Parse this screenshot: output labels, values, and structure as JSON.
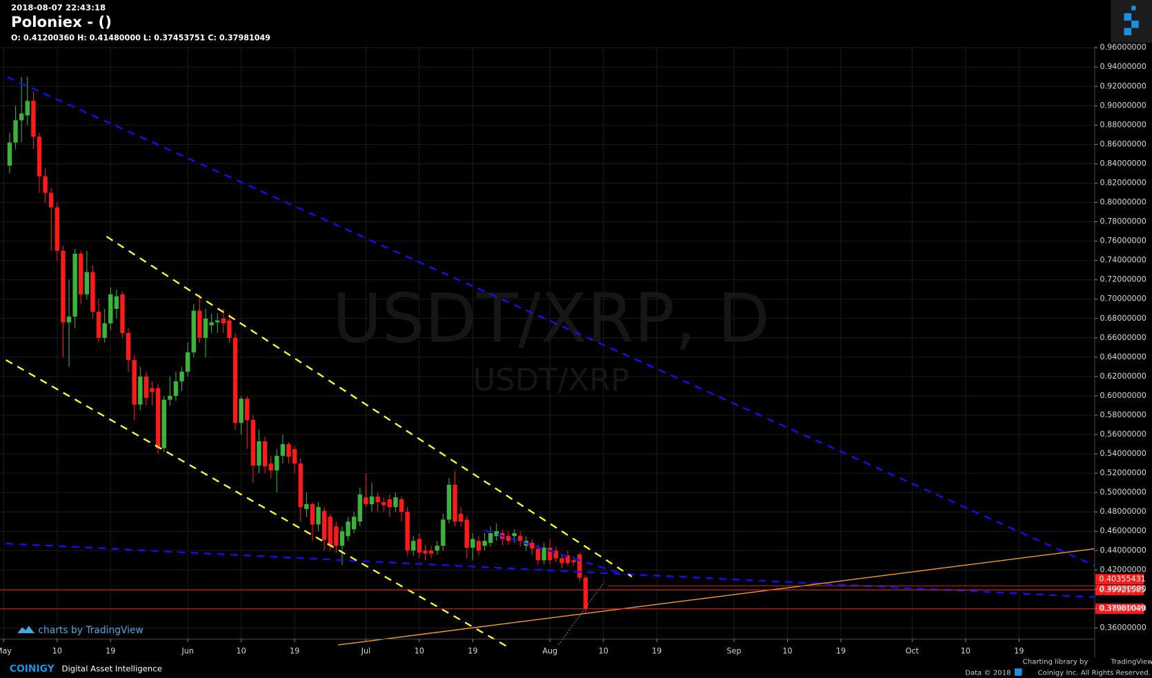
{
  "header": {
    "timestamp": "2018-08-07 22:43:18",
    "title": "Poloniex -  ()",
    "ohlc": "O: 0.41200360 H: 0.41480000 L: 0.37453751 C: 0.37981049"
  },
  "chart_data": {
    "type": "candlestick",
    "watermark": "USDT/XRP, D",
    "watermark_sub": "USDT/XRP",
    "x": [
      "2018-05-02",
      "2018-05-03",
      "2018-05-04",
      "2018-05-05",
      "2018-05-06",
      "2018-05-07",
      "2018-05-08",
      "2018-05-09",
      "2018-05-10",
      "2018-05-11",
      "2018-05-12",
      "2018-05-13",
      "2018-05-14",
      "2018-05-15",
      "2018-05-16",
      "2018-05-17",
      "2018-05-18",
      "2018-05-19",
      "2018-05-20",
      "2018-05-21",
      "2018-05-22",
      "2018-05-23",
      "2018-05-24",
      "2018-05-25",
      "2018-05-26",
      "2018-05-27",
      "2018-05-28",
      "2018-05-29",
      "2018-05-30",
      "2018-05-31",
      "2018-06-01",
      "2018-06-02",
      "2018-06-03",
      "2018-06-04",
      "2018-06-05",
      "2018-06-06",
      "2018-06-07",
      "2018-06-08",
      "2018-06-09",
      "2018-06-10",
      "2018-06-11",
      "2018-06-12",
      "2018-06-13",
      "2018-06-14",
      "2018-06-15",
      "2018-06-16",
      "2018-06-17",
      "2018-06-18",
      "2018-06-19",
      "2018-06-20",
      "2018-06-21",
      "2018-06-22",
      "2018-06-23",
      "2018-06-24",
      "2018-06-25",
      "2018-06-26",
      "2018-06-27",
      "2018-06-28",
      "2018-06-29",
      "2018-06-30",
      "2018-07-01",
      "2018-07-02",
      "2018-07-03",
      "2018-07-04",
      "2018-07-05",
      "2018-07-06",
      "2018-07-07",
      "2018-07-08",
      "2018-07-09",
      "2018-07-10",
      "2018-07-11",
      "2018-07-12",
      "2018-07-13",
      "2018-07-14",
      "2018-07-15",
      "2018-07-16",
      "2018-07-17",
      "2018-07-18",
      "2018-07-19",
      "2018-07-20",
      "2018-07-21",
      "2018-07-22",
      "2018-07-23",
      "2018-07-24",
      "2018-07-25",
      "2018-07-26",
      "2018-07-27",
      "2018-07-28",
      "2018-07-29",
      "2018-07-30",
      "2018-07-31",
      "2018-08-01",
      "2018-08-02",
      "2018-08-03",
      "2018-08-04",
      "2018-08-05",
      "2018-08-06",
      "2018-08-07"
    ],
    "open": [
      0.838,
      0.862,
      0.885,
      0.89,
      0.905,
      0.868,
      0.827,
      0.81,
      0.795,
      0.75,
      0.676,
      0.682,
      0.747,
      0.705,
      0.728,
      0.687,
      0.66,
      0.675,
      0.69,
      0.705,
      0.665,
      0.637,
      0.591,
      0.62,
      0.608,
      0.608,
      0.546,
      0.596,
      0.6,
      0.615,
      0.625,
      0.645,
      0.688,
      0.66,
      0.673,
      0.676,
      0.68,
      0.678,
      0.66,
      0.572,
      0.597,
      0.575,
      0.528,
      0.553,
      0.53,
      0.523,
      0.538,
      0.55,
      0.545,
      0.53,
      0.483,
      0.488,
      0.467,
      0.481,
      0.475,
      0.465,
      0.445,
      0.455,
      0.462,
      0.47,
      0.495,
      0.488,
      0.496,
      0.49,
      0.493,
      0.485,
      0.493,
      0.48,
      0.44,
      0.452,
      0.44,
      0.44,
      0.44,
      0.445,
      0.472,
      0.508,
      0.478,
      0.472,
      0.443,
      0.45,
      0.445,
      0.448,
      0.455,
      0.458,
      0.455,
      0.455,
      0.455,
      0.445,
      0.448,
      0.442,
      0.43,
      0.443,
      0.44,
      0.432,
      0.435,
      0.43,
      0.436,
      0.4120036
    ],
    "high": [
      0.872,
      0.9,
      0.93,
      0.93,
      0.915,
      0.872,
      0.835,
      0.815,
      0.8,
      0.755,
      0.72,
      0.752,
      0.75,
      0.75,
      0.735,
      0.7,
      0.69,
      0.712,
      0.71,
      0.708,
      0.67,
      0.642,
      0.63,
      0.625,
      0.615,
      0.612,
      0.6,
      0.62,
      0.625,
      0.63,
      0.655,
      0.695,
      0.705,
      0.69,
      0.685,
      0.685,
      0.69,
      0.685,
      0.665,
      0.6,
      0.6,
      0.58,
      0.565,
      0.558,
      0.538,
      0.545,
      0.56,
      0.552,
      0.548,
      0.535,
      0.5,
      0.49,
      0.49,
      0.485,
      0.478,
      0.47,
      0.465,
      0.475,
      0.48,
      0.505,
      0.52,
      0.51,
      0.5,
      0.495,
      0.498,
      0.5,
      0.496,
      0.485,
      0.455,
      0.458,
      0.446,
      0.445,
      0.45,
      0.478,
      0.515,
      0.522,
      0.485,
      0.476,
      0.458,
      0.455,
      0.458,
      0.465,
      0.468,
      0.462,
      0.46,
      0.462,
      0.46,
      0.455,
      0.452,
      0.446,
      0.448,
      0.452,
      0.444,
      0.436,
      0.44,
      0.434,
      0.438,
      0.4148
    ],
    "low": [
      0.83,
      0.855,
      0.862,
      0.88,
      0.855,
      0.81,
      0.8,
      0.75,
      0.74,
      0.64,
      0.63,
      0.67,
      0.695,
      0.7,
      0.68,
      0.655,
      0.655,
      0.668,
      0.68,
      0.66,
      0.625,
      0.575,
      0.585,
      0.59,
      0.59,
      0.54,
      0.542,
      0.59,
      0.595,
      0.605,
      0.62,
      0.64,
      0.655,
      0.64,
      0.665,
      0.665,
      0.665,
      0.655,
      0.565,
      0.56,
      0.545,
      0.51,
      0.52,
      0.52,
      0.515,
      0.5,
      0.53,
      0.53,
      0.52,
      0.47,
      0.475,
      0.45,
      0.46,
      0.44,
      0.44,
      0.438,
      0.425,
      0.45,
      0.458,
      0.465,
      0.485,
      0.48,
      0.48,
      0.48,
      0.475,
      0.48,
      0.47,
      0.435,
      0.435,
      0.432,
      0.43,
      0.432,
      0.436,
      0.44,
      0.468,
      0.465,
      0.465,
      0.432,
      0.43,
      0.435,
      0.44,
      0.444,
      0.45,
      0.445,
      0.446,
      0.448,
      0.444,
      0.44,
      0.436,
      0.425,
      0.426,
      0.426,
      0.428,
      0.422,
      0.424,
      0.424,
      0.408,
      0.37453751
    ],
    "close": [
      0.862,
      0.885,
      0.892,
      0.905,
      0.868,
      0.827,
      0.81,
      0.795,
      0.75,
      0.676,
      0.682,
      0.747,
      0.705,
      0.728,
      0.687,
      0.66,
      0.675,
      0.705,
      0.703,
      0.665,
      0.637,
      0.591,
      0.62,
      0.598,
      0.604,
      0.546,
      0.596,
      0.6,
      0.615,
      0.625,
      0.645,
      0.688,
      0.66,
      0.68,
      0.676,
      0.678,
      0.675,
      0.66,
      0.572,
      0.597,
      0.575,
      0.528,
      0.553,
      0.527,
      0.523,
      0.538,
      0.55,
      0.537,
      0.53,
      0.485,
      0.488,
      0.467,
      0.485,
      0.451,
      0.445,
      0.445,
      0.46,
      0.47,
      0.475,
      0.498,
      0.488,
      0.496,
      0.49,
      0.487,
      0.485,
      0.495,
      0.48,
      0.44,
      0.45,
      0.438,
      0.437,
      0.437,
      0.445,
      0.472,
      0.508,
      0.47,
      0.47,
      0.443,
      0.452,
      0.44,
      0.45,
      0.458,
      0.46,
      0.452,
      0.45,
      0.458,
      0.45,
      0.45,
      0.442,
      0.43,
      0.443,
      0.43,
      0.432,
      0.427,
      0.427,
      0.428,
      0.412,
      0.37981049
    ],
    "up_color": "#3cb43c",
    "down_color": "#ff1a1a",
    "xlim": [
      "2018-05-01",
      "2018-10-31"
    ],
    "xticks": [
      {
        "value": "2018-05-01",
        "label": "May"
      },
      {
        "value": "2018-05-10",
        "label": "10"
      },
      {
        "value": "2018-05-19",
        "label": "19"
      },
      {
        "value": "2018-06-01",
        "label": "Jun"
      },
      {
        "value": "2018-06-10",
        "label": "10"
      },
      {
        "value": "2018-06-19",
        "label": "19"
      },
      {
        "value": "2018-07-01",
        "label": "Jul"
      },
      {
        "value": "2018-07-10",
        "label": "10"
      },
      {
        "value": "2018-07-19",
        "label": "19"
      },
      {
        "value": "2018-08-01",
        "label": "Aug"
      },
      {
        "value": "2018-08-10",
        "label": "10"
      },
      {
        "value": "2018-08-19",
        "label": "19"
      },
      {
        "value": "2018-09-01",
        "label": "Sep"
      },
      {
        "value": "2018-09-10",
        "label": "10"
      },
      {
        "value": "2018-09-19",
        "label": "19"
      },
      {
        "value": "2018-10-01",
        "label": "Oct"
      },
      {
        "value": "2018-10-10",
        "label": "10"
      },
      {
        "value": "2018-10-19",
        "label": "19"
      }
    ],
    "ylim": [
      0.3485,
      0.9615
    ],
    "yticks": [
      {
        "value": 0.36,
        "label": "0.36000000"
      },
      {
        "value": 0.38,
        "label": "0.38000000"
      },
      {
        "value": 0.4,
        "label": "0.40000000"
      },
      {
        "value": 0.42,
        "label": "0.42000000"
      },
      {
        "value": 0.44,
        "label": "0.44000000"
      },
      {
        "value": 0.46,
        "label": "0.46000000"
      },
      {
        "value": 0.48,
        "label": "0.48000000"
      },
      {
        "value": 0.5,
        "label": "0.50000000"
      },
      {
        "value": 0.52,
        "label": "0.52000000"
      },
      {
        "value": 0.54,
        "label": "0.54000000"
      },
      {
        "value": 0.56,
        "label": "0.56000000"
      },
      {
        "value": 0.58,
        "label": "0.58000000"
      },
      {
        "value": 0.6,
        "label": "0.60000000"
      },
      {
        "value": 0.62,
        "label": "0.62000000"
      },
      {
        "value": 0.64,
        "label": "0.64000000"
      },
      {
        "value": 0.66,
        "label": "0.66000000"
      },
      {
        "value": 0.68,
        "label": "0.68000000"
      },
      {
        "value": 0.7,
        "label": "0.70000000"
      },
      {
        "value": 0.72,
        "label": "0.72000000"
      },
      {
        "value": 0.74,
        "label": "0.74000000"
      },
      {
        "value": 0.76,
        "label": "0.76000000"
      },
      {
        "value": 0.78,
        "label": "0.78000000"
      },
      {
        "value": 0.8,
        "label": "0.80000000"
      },
      {
        "value": 0.82,
        "label": "0.82000000"
      },
      {
        "value": 0.84,
        "label": "0.84000000"
      },
      {
        "value": 0.86,
        "label": "0.86000000"
      },
      {
        "value": 0.88,
        "label": "0.88000000"
      },
      {
        "value": 0.9,
        "label": "0.90000000"
      },
      {
        "value": 0.92,
        "label": "0.92000000"
      },
      {
        "value": 0.94,
        "label": "0.94000000"
      },
      {
        "value": 0.96,
        "label": "0.96000000"
      }
    ],
    "grid": true,
    "price_lines": [
      {
        "value": 0.40355431,
        "color": "#ff1a1a"
      },
      {
        "value": 0.39921585,
        "color": "#ff1a1a"
      },
      {
        "value": 0.37981049,
        "color": "#ff1a1a"
      }
    ]
  },
  "branding": {
    "tv_badge": "charts by TradingView",
    "coinigy": "COINIGY",
    "tagline": "Digital Asset Intelligence",
    "charting_by": "Charting library by",
    "tradingview": "TradingView",
    "data_copy": "Data © 2018",
    "rights": "Coinigy Inc. All Rights Reserved."
  }
}
